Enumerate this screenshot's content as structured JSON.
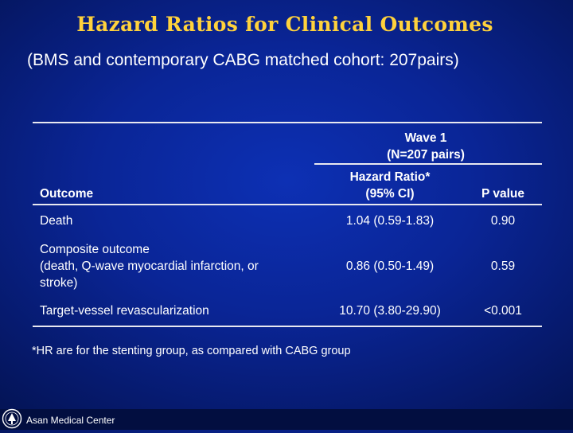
{
  "slide": {
    "title": "Hazard Ratios for Clinical Outcomes",
    "subtitle": "(BMS and contemporary CABG matched cohort: 207pairs)"
  },
  "table": {
    "group_header_line1": "Wave 1",
    "group_header_line2": "(N=207 pairs)",
    "col_outcome": "Outcome",
    "col_hr_line1": "Hazard Ratio*",
    "col_hr_line2": "(95% CI)",
    "col_p": "P value",
    "rows": [
      {
        "outcome_lines": [
          "Death"
        ],
        "hr": "1.04 (0.59-1.83)",
        "p": "0.90"
      },
      {
        "outcome_lines": [
          "Composite outcome",
          "(death, Q-wave myocardial infarction, or",
          "stroke)"
        ],
        "hr": "0.86 (0.50-1.49)",
        "p": "0.59"
      },
      {
        "outcome_lines": [
          "Target-vessel revascularization"
        ],
        "hr": "10.70 (3.80-29.90)",
        "p": "<0.001"
      }
    ]
  },
  "footnote": "*HR are for the stenting group, as compared with CABG group",
  "footer": {
    "logo_text": "Asan Medical Center",
    "logo_icon": "asan-medical-center-emblem-icon"
  },
  "colors": {
    "background": "#0a2596",
    "title": "#ffd23c",
    "text": "#ffffff",
    "rule": "#e8e8f0"
  }
}
